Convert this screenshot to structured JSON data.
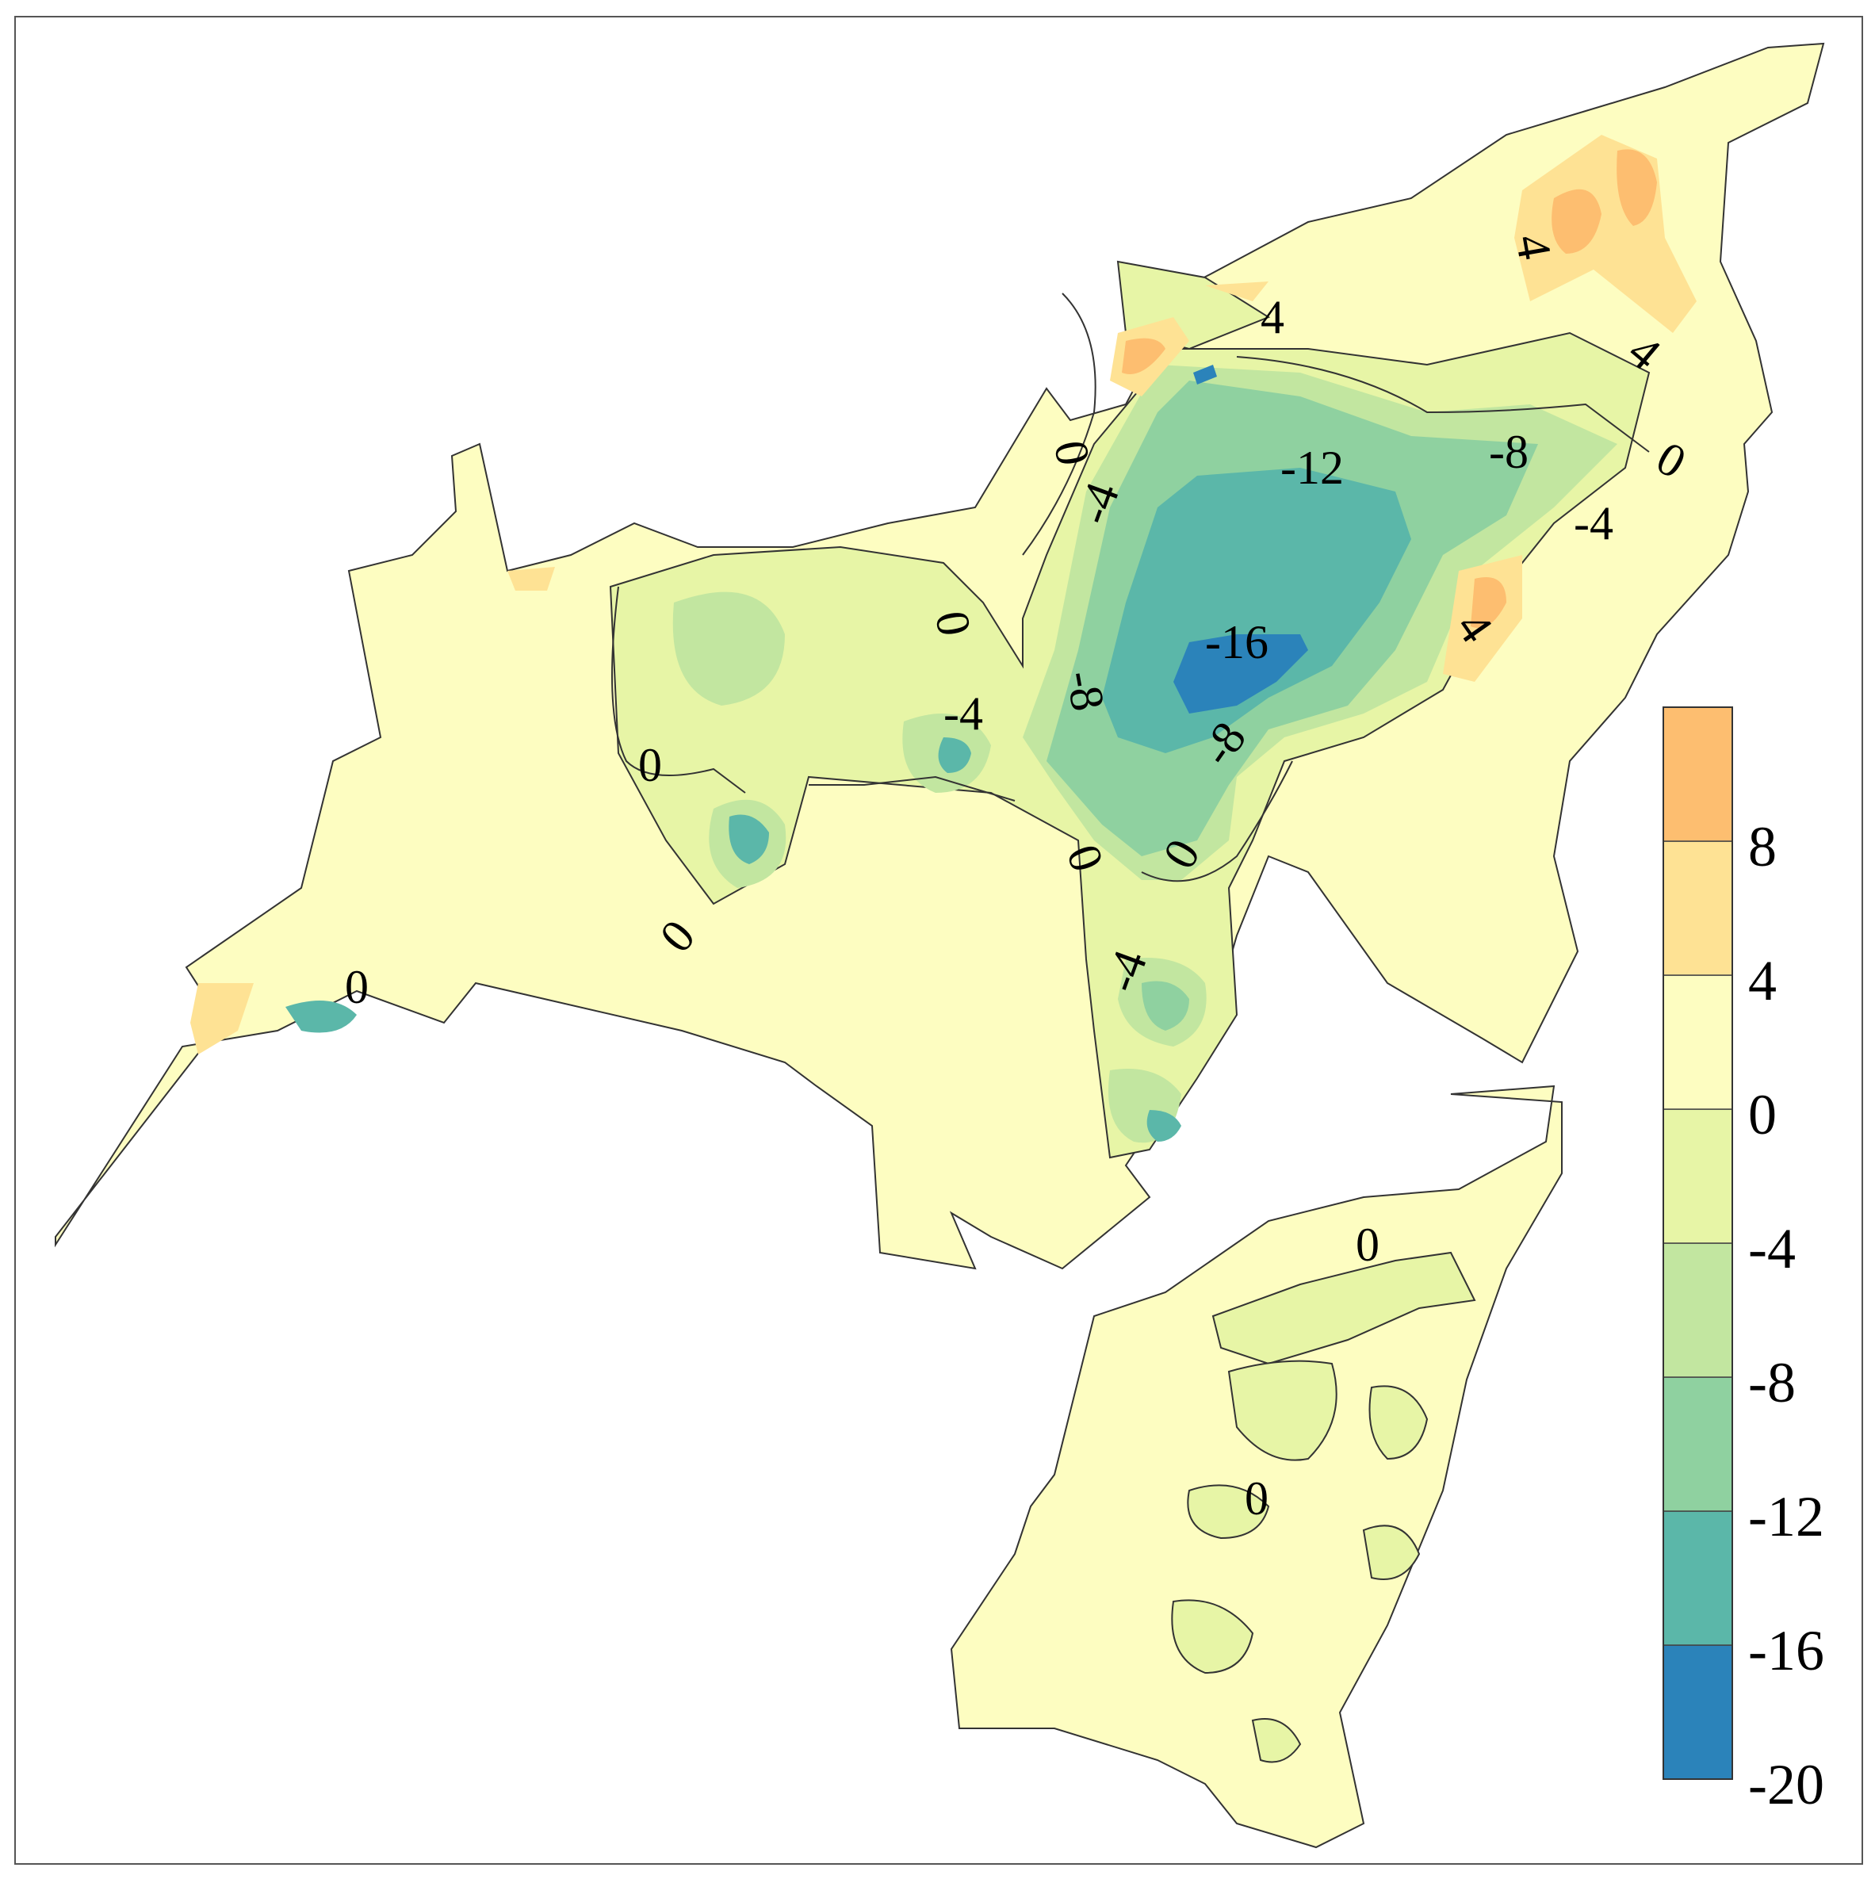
{
  "map": {
    "contour_labels": [
      {
        "id": "c1",
        "text": "4"
      },
      {
        "id": "c2",
        "text": "4"
      },
      {
        "id": "c3",
        "text": "4"
      },
      {
        "id": "c4",
        "text": "0"
      },
      {
        "id": "c5",
        "text": "-12"
      },
      {
        "id": "c6",
        "text": "-8"
      },
      {
        "id": "c7",
        "text": "0"
      },
      {
        "id": "c8",
        "text": "-4"
      },
      {
        "id": "c9",
        "text": "-4"
      },
      {
        "id": "c10",
        "text": "4"
      },
      {
        "id": "c11",
        "text": "0"
      },
      {
        "id": "c12",
        "text": "-16"
      },
      {
        "id": "c13",
        "text": "-8"
      },
      {
        "id": "c14",
        "text": "-4"
      },
      {
        "id": "c15",
        "text": "0"
      },
      {
        "id": "c16",
        "text": "-8"
      },
      {
        "id": "c17",
        "text": "0"
      },
      {
        "id": "c18",
        "text": "0"
      },
      {
        "id": "c19",
        "text": "0"
      },
      {
        "id": "c20",
        "text": "0"
      },
      {
        "id": "c21",
        "text": "-4"
      },
      {
        "id": "c22",
        "text": "0"
      },
      {
        "id": "c23",
        "text": "0"
      }
    ]
  },
  "colorbar": {
    "ticks": [
      "8",
      "4",
      "0",
      "-4",
      "-8",
      "-12",
      "-16",
      "-20"
    ],
    "bins": [
      {
        "from": -20,
        "to": -16,
        "color": "#2b83ba"
      },
      {
        "from": -16,
        "to": -12,
        "color": "#5bb7a9"
      },
      {
        "from": -12,
        "to": -8,
        "color": "#8fd1a0"
      },
      {
        "from": -8,
        "to": -4,
        "color": "#c2e6a0"
      },
      {
        "from": -4,
        "to": 0,
        "color": "#e7f5a6"
      },
      {
        "from": 0,
        "to": 4,
        "color": "#fdfdc1"
      },
      {
        "from": 4,
        "to": 8,
        "color": "#fee294"
      },
      {
        "from": 8,
        "to": 12,
        "color": "#fdbe70"
      }
    ]
  }
}
